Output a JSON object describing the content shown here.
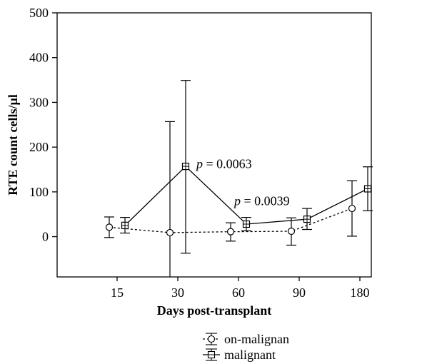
{
  "chart_data": {
    "type": "line",
    "xlabel": "Days post-transplant",
    "ylabel": "RTE count cells/µl",
    "categories": [
      "15",
      "30",
      "60",
      "90",
      "180"
    ],
    "ylim": [
      -90,
      500
    ],
    "yticks": [
      0,
      100,
      200,
      300,
      400,
      500
    ],
    "grid": false,
    "legend_position": "bottom-center",
    "series": [
      {
        "name": "on-malignan",
        "marker": "circle",
        "line_style": "dotted",
        "values": [
          21,
          9,
          11,
          12,
          63
        ],
        "error_low": [
          -2,
          -90,
          -10,
          -19,
          1
        ],
        "error_high": [
          44,
          257,
          31,
          42,
          125
        ]
      },
      {
        "name": "malignant",
        "marker": "square",
        "line_style": "solid",
        "values": [
          25,
          157,
          28,
          39,
          107
        ],
        "error_low": [
          8,
          -37,
          13,
          16,
          58
        ],
        "error_high": [
          43,
          349,
          43,
          63,
          156
        ]
      }
    ],
    "annotations": [
      {
        "text": "p = 0.0063",
        "category_index": 1,
        "y": 163
      },
      {
        "text": "p = 0.0039",
        "category_index": 2,
        "y": 80
      }
    ]
  }
}
